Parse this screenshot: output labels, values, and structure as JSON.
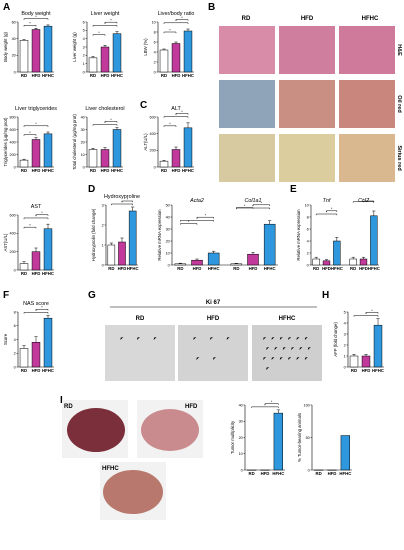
{
  "colors": {
    "rd": "#ffffff",
    "hfd": "#c0399b",
    "hfhc": "#2f97dd",
    "he_bg": "#d98ca8",
    "oil_bg": "#c98f82",
    "sirius_bg": "#d7c9a0",
    "ki_bg": "#d8d8d8",
    "liver": "#7a2f3b"
  },
  "panels": {
    "A": "A",
    "B": "B",
    "C": "C",
    "D": "D",
    "E": "E",
    "F": "F",
    "G": "G",
    "H": "H",
    "I": "I"
  },
  "histology": {
    "columns": [
      "RD",
      "HFD",
      "HFHC"
    ],
    "rows": [
      "H&E",
      "Oil red",
      "Sirius red"
    ]
  },
  "ki67": {
    "title": "Ki 67",
    "columns": [
      "RD",
      "HFD",
      "HFHC"
    ],
    "arrow_counts": [
      3,
      5,
      19
    ]
  },
  "liver_photos": {
    "labels": [
      "RD",
      "HFD",
      "HFHC"
    ]
  },
  "chart_data": [
    {
      "id": "body-weight",
      "type": "bar",
      "title": "Body weight",
      "ylabel": "Body weight (g)",
      "categories": [
        "RD",
        "HFD",
        "HFHC"
      ],
      "values": [
        38,
        51,
        55
      ],
      "errors": [
        1,
        1.5,
        1.5
      ],
      "ylim": [
        0,
        60
      ],
      "yticks": [
        0,
        20,
        40,
        60
      ],
      "sig": [
        [
          0,
          1
        ],
        [
          0,
          2
        ]
      ]
    },
    {
      "id": "liver-weight",
      "type": "bar",
      "title": "Liver weight",
      "ylabel": "Liver weight (g)",
      "categories": [
        "RD",
        "HFD",
        "HFHC"
      ],
      "values": [
        1.7,
        3.0,
        4.6
      ],
      "errors": [
        0.15,
        0.2,
        0.25
      ],
      "ylim": [
        0,
        6
      ],
      "yticks": [
        0,
        1,
        2,
        3,
        4,
        5,
        6
      ],
      "sig": [
        [
          0,
          1
        ],
        [
          0,
          2
        ],
        [
          1,
          2
        ]
      ]
    },
    {
      "id": "liver-body-ratio",
      "type": "bar",
      "title": "Liver/body ratio",
      "ylabel": "LBW (%)",
      "categories": [
        "RD",
        "HFD",
        "HFHC"
      ],
      "values": [
        4.4,
        5.7,
        8.2
      ],
      "errors": [
        0.2,
        0.3,
        0.4
      ],
      "ylim": [
        0,
        10
      ],
      "yticks": [
        0,
        2,
        4,
        6,
        8,
        10
      ],
      "sig": [
        [
          0,
          1
        ],
        [
          0,
          2
        ],
        [
          1,
          2
        ]
      ]
    },
    {
      "id": "liver-triglycerides",
      "type": "bar",
      "title": "Liver triglycerides",
      "ylabel": "Triglycerides (μg/mg prot)",
      "categories": [
        "RD",
        "HFD",
        "HFHC"
      ],
      "values": [
        110,
        440,
        530
      ],
      "errors": [
        15,
        30,
        30
      ],
      "ylim": [
        0,
        800
      ],
      "yticks": [
        0,
        200,
        400,
        600,
        800
      ],
      "sig": [
        [
          0,
          1
        ],
        [
          0,
          2
        ]
      ]
    },
    {
      "id": "liver-cholesterol",
      "type": "bar",
      "title": "Liver cholesterol",
      "ylabel": "Total cholesterol (μg/mg prot)",
      "categories": [
        "RD",
        "HFD",
        "HFHC"
      ],
      "values": [
        14,
        14,
        30
      ],
      "errors": [
        1,
        1.5,
        1.5
      ],
      "ylim": [
        0,
        40
      ],
      "yticks": [
        0,
        10,
        20,
        30,
        40
      ],
      "sig": [
        [
          0,
          2
        ],
        [
          1,
          2
        ]
      ]
    },
    {
      "id": "alt",
      "type": "bar",
      "title": "ALT",
      "ylabel": "ALT(U/L)",
      "categories": [
        "RD",
        "HFD",
        "HFHC"
      ],
      "values": [
        70,
        210,
        470
      ],
      "errors": [
        10,
        30,
        60
      ],
      "ylim": [
        0,
        600
      ],
      "yticks": [
        0,
        200,
        400,
        600
      ],
      "sig": [
        [
          0,
          1
        ],
        [
          0,
          2
        ],
        [
          1,
          2
        ]
      ]
    },
    {
      "id": "ast",
      "type": "bar",
      "title": "AST",
      "ylabel": "AST(U/L)",
      "categories": [
        "RD",
        "HFD",
        "HFHC"
      ],
      "values": [
        70,
        200,
        450
      ],
      "errors": [
        20,
        40,
        50
      ],
      "ylim": [
        0,
        600
      ],
      "yticks": [
        0,
        200,
        400,
        600
      ],
      "sig": [
        [
          0,
          1
        ],
        [
          0,
          2
        ],
        [
          1,
          2
        ]
      ]
    },
    {
      "id": "hydroxyproline",
      "type": "bar",
      "title": "Hydroxyproline",
      "ylabel": "Hydroxyprolin (fold change)",
      "categories": [
        "RD",
        "HFD",
        "HFHC"
      ],
      "values": [
        1.0,
        1.15,
        2.7
      ],
      "errors": [
        0.1,
        0.2,
        0.2
      ],
      "ylim": [
        0,
        3
      ],
      "yticks": [
        0,
        1,
        2,
        3
      ],
      "sig": [
        [
          0,
          2
        ],
        [
          1,
          2
        ]
      ]
    },
    {
      "id": "fibrosis-genes",
      "type": "bar",
      "title": "",
      "ylabel": "Relative mRNA expression",
      "categories": [
        "RD",
        "HFD",
        "HFHC",
        "RD",
        "HFD",
        "HFHC"
      ],
      "groups": [
        "Acta2",
        "Col1a1"
      ],
      "values": [
        1.0,
        4.0,
        10.0,
        1.0,
        9.0,
        34.0
      ],
      "errors": [
        0.5,
        1,
        1.5,
        0.4,
        1.5,
        3
      ],
      "ylim": [
        0,
        50
      ],
      "yticks": [
        0,
        10,
        20,
        30,
        40,
        50
      ],
      "sig": [
        [
          0,
          1
        ],
        [
          0,
          2
        ],
        [
          1,
          2
        ],
        [
          3,
          5
        ],
        [
          4,
          5
        ],
        [
          3,
          4
        ]
      ]
    },
    {
      "id": "inflammation-genes",
      "type": "bar",
      "title": "",
      "ylabel": "Relative mRNA expression",
      "categories": [
        "RD",
        "HFD",
        "HFHC",
        "RD",
        "HFD",
        "HFHC"
      ],
      "groups": [
        "Tnf",
        "Ccl2"
      ],
      "values": [
        1.0,
        0.7,
        4.0,
        1.0,
        1.0,
        8.2
      ],
      "errors": [
        0.3,
        0.2,
        0.6,
        0.3,
        0.3,
        0.8
      ],
      "ylim": [
        0,
        10
      ],
      "yticks": [
        0,
        2,
        4,
        6,
        8,
        10
      ],
      "sig": [
        [
          0,
          2
        ],
        [
          1,
          2
        ],
        [
          3,
          5
        ],
        [
          4,
          5
        ]
      ]
    },
    {
      "id": "nas-score",
      "type": "bar",
      "title": "NAS score",
      "ylabel": "Score",
      "categories": [
        "RD",
        "HFD",
        "HFHC"
      ],
      "values": [
        2.7,
        3.6,
        7.1
      ],
      "errors": [
        0.4,
        0.8,
        0.4
      ],
      "ylim": [
        0,
        8
      ],
      "yticks": [
        0,
        2,
        4,
        6,
        8
      ],
      "sig": [
        [
          0,
          2
        ],
        [
          1,
          2
        ]
      ]
    },
    {
      "id": "afp",
      "type": "bar",
      "title": "",
      "ylabel": "AFP (fold change)",
      "categories": [
        "RD",
        "HFD",
        "HFHC"
      ],
      "values": [
        1.0,
        1.0,
        3.8
      ],
      "errors": [
        0.15,
        0.15,
        0.6
      ],
      "ylim": [
        0,
        5
      ],
      "yticks": [
        0,
        1,
        2,
        3,
        4,
        5
      ],
      "sig": [
        [
          0,
          2
        ],
        [
          1,
          2
        ]
      ]
    },
    {
      "id": "tumor-multiplicity",
      "type": "bar",
      "title": "",
      "ylabel": "Tumor multiplicity",
      "categories": [
        "RD",
        "HFD",
        "HFHC"
      ],
      "values": [
        0,
        0,
        35
      ],
      "errors": [
        0,
        0,
        2
      ],
      "ylim": [
        0,
        40
      ],
      "yticks": [
        0,
        10,
        20,
        30,
        40
      ],
      "sig": [
        [
          0,
          2
        ],
        [
          1,
          2
        ]
      ]
    },
    {
      "id": "tumor-bearing",
      "type": "bar",
      "title": "",
      "ylabel": "% Tumor-bearing animals",
      "categories": [
        "RD",
        "HFD",
        "HFHC"
      ],
      "values": [
        0,
        0,
        53
      ],
      "errors": [
        0,
        0,
        0
      ],
      "ylim": [
        0,
        100
      ],
      "yticks": [
        0,
        50,
        100
      ],
      "sig": []
    }
  ]
}
